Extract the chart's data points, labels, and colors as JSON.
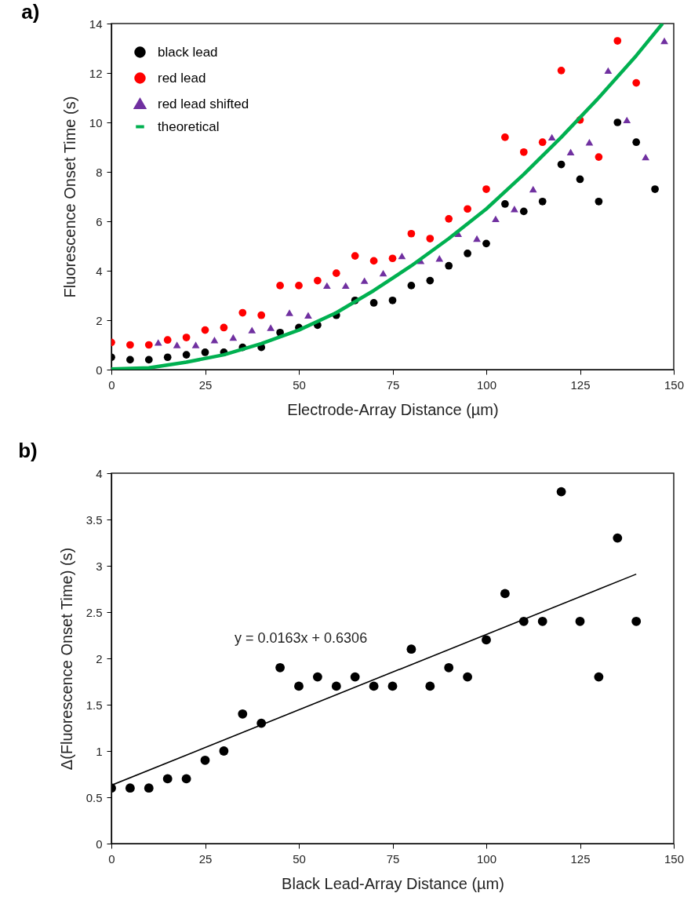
{
  "chart_data": [
    {
      "type": "scatter",
      "title": "a)",
      "xlabel": "Electrode-Array Distance (µm)",
      "ylabel": "Fluorescence Onset Time (s)",
      "xlim": [
        0,
        150
      ],
      "xticks": [
        0,
        25,
        50,
        75,
        100,
        125,
        150
      ],
      "ylim": [
        0,
        14
      ],
      "yticks": [
        0,
        2,
        4,
        6,
        8,
        10,
        12,
        14
      ],
      "grid": false,
      "legend": "top left",
      "series": [
        {
          "name": "black lead",
          "type": "scatter",
          "marker": "circle",
          "color": "#000000",
          "x": [
            0,
            5,
            10,
            15,
            20,
            25,
            30,
            35,
            40,
            45,
            50,
            55,
            60,
            65,
            70,
            75,
            80,
            85,
            90,
            95,
            100,
            105,
            110,
            115,
            120,
            125,
            130,
            135,
            140,
            145
          ],
          "values": [
            0.5,
            0.4,
            0.4,
            0.5,
            0.6,
            0.7,
            0.7,
            0.9,
            0.9,
            1.5,
            1.7,
            1.8,
            2.2,
            2.8,
            2.7,
            2.8,
            3.4,
            3.6,
            4.2,
            4.7,
            5.1,
            6.7,
            6.4,
            6.8,
            8.3,
            7.7,
            6.8,
            10.0,
            9.2,
            7.3
          ]
        },
        {
          "name": "red lead",
          "type": "scatter",
          "marker": "circle",
          "color": "#ff0000",
          "x": [
            0,
            5,
            10,
            15,
            20,
            25,
            30,
            35,
            40,
            45,
            50,
            55,
            60,
            65,
            70,
            75,
            80,
            85,
            90,
            95,
            100,
            105,
            110,
            115,
            120,
            125,
            130,
            135,
            140
          ],
          "values": [
            1.1,
            1.0,
            1.0,
            1.2,
            1.3,
            1.6,
            1.7,
            2.3,
            2.2,
            3.4,
            3.4,
            3.6,
            3.9,
            4.6,
            4.4,
            4.5,
            5.5,
            5.3,
            6.1,
            6.5,
            7.3,
            9.4,
            8.8,
            9.2,
            12.1,
            10.1,
            8.6,
            13.3,
            11.6
          ]
        },
        {
          "name": "red lead shifted",
          "type": "scatter",
          "marker": "triangle",
          "color": "#7030a0",
          "x": [
            12.5,
            17.5,
            22.5,
            27.5,
            32.5,
            37.5,
            42.5,
            47.5,
            52.5,
            57.5,
            62.5,
            67.5,
            72.5,
            77.5,
            82.5,
            87.5,
            92.5,
            97.5,
            102.5,
            107.5,
            112.5,
            117.5,
            122.5,
            127.5,
            132.5,
            137.5,
            142.5,
            147.5
          ],
          "values": [
            1.1,
            1.0,
            1.0,
            1.2,
            1.3,
            1.6,
            1.7,
            2.3,
            2.2,
            3.4,
            3.4,
            3.6,
            3.9,
            4.6,
            4.4,
            4.5,
            5.5,
            5.3,
            6.1,
            6.5,
            7.3,
            9.4,
            8.8,
            9.2,
            12.1,
            10.1,
            8.6,
            13.3
          ]
        },
        {
          "name": "theoretical",
          "type": "line",
          "marker": "none",
          "color": "#00b050",
          "x": [
            0,
            10,
            20,
            30,
            40,
            50,
            60,
            70,
            80,
            90,
            100,
            110,
            120,
            130,
            140,
            147
          ],
          "values": [
            0.02,
            0.07,
            0.3,
            0.6,
            1.05,
            1.6,
            2.3,
            3.2,
            4.2,
            5.3,
            6.5,
            7.9,
            9.4,
            11.0,
            12.7,
            14.0
          ]
        }
      ]
    },
    {
      "type": "scatter",
      "title": "b)",
      "xlabel": "Black Lead-Array Distance (µm)",
      "ylabel": "Δ(Fluorescence Onset Time) (s)",
      "xlim": [
        0,
        150
      ],
      "xticks": [
        0,
        25,
        50,
        75,
        100,
        125,
        150
      ],
      "ylim": [
        0,
        4
      ],
      "yticks": [
        0,
        0.5,
        1,
        1.5,
        2,
        2.5,
        3,
        3.5,
        4
      ],
      "grid": false,
      "legend": false,
      "annotations": [
        "y = 0.0163x + 0.6306"
      ],
      "series": [
        {
          "type": "scatter",
          "marker": "circle",
          "color": "#000000",
          "x": [
            0,
            5,
            10,
            15,
            20,
            25,
            30,
            35,
            40,
            45,
            50,
            55,
            60,
            65,
            70,
            75,
            80,
            85,
            90,
            95,
            100,
            105,
            110,
            115,
            120,
            125,
            130,
            135,
            140
          ],
          "values": [
            0.6,
            0.6,
            0.6,
            0.7,
            0.7,
            0.9,
            1.0,
            1.4,
            1.3,
            1.9,
            1.7,
            1.8,
            1.7,
            1.8,
            1.7,
            1.7,
            2.1,
            1.7,
            1.9,
            1.8,
            2.2,
            2.7,
            2.4,
            2.4,
            3.8,
            2.4,
            1.8,
            3.3,
            2.4
          ]
        },
        {
          "type": "line",
          "marker": "none",
          "color": "#000000",
          "x": [
            0,
            140
          ],
          "values": [
            0.63,
            2.91
          ]
        }
      ]
    }
  ]
}
